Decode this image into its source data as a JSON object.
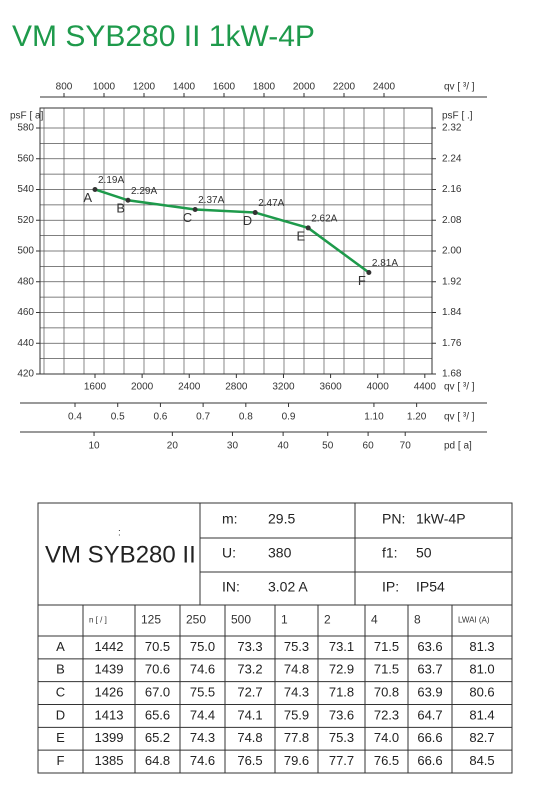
{
  "title": "VM SYB280 II 1kW-4P",
  "chart_data": {
    "type": "line",
    "x": [
      1600,
      1880,
      2450,
      2960,
      3410,
      3925
    ],
    "series": [
      {
        "color": "#1e9a4b",
        "values": [
          540,
          533,
          527,
          525,
          515,
          486
        ],
        "point_names": [
          "A",
          "B",
          "C",
          "D",
          "E",
          "F"
        ],
        "point_labels": [
          "2.19A",
          "2.29A",
          "2.37A",
          "2.47A",
          "2.62A",
          "2.81A"
        ]
      }
    ],
    "x_label": "qv [   ³/   ]",
    "xlim": [
      1133,
      4461
    ],
    "xticks": [
      1600,
      2000,
      2400,
      2800,
      3200,
      3600,
      4000,
      4400
    ],
    "y_label": "psF [  a]",
    "ylim": [
      420,
      593
    ],
    "yticks": [
      420,
      440,
      460,
      480,
      500,
      520,
      540,
      560,
      580
    ],
    "y2_label": "psF [       .]",
    "y2lim": [
      1.68,
      2.372
    ],
    "y2ticks": [
      1.68,
      1.76,
      1.84,
      1.92,
      {
        "value": 2.0,
        "label": "2.00"
      },
      2.08,
      2.16,
      2.24,
      2.32
    ],
    "top_axis": {
      "label": "qv [   ³/   ]",
      "lim": [
        680,
        2640
      ],
      "ticks": [
        800,
        1000,
        1200,
        1400,
        1600,
        1800,
        2000,
        2200,
        2400
      ]
    },
    "bottom_axes": [
      {
        "label": "qv [   ³/  ]",
        "lim": [
          0.318,
          1.236
        ],
        "ticks": [
          0.4,
          0.5,
          0.6,
          0.7,
          0.8,
          0.9,
          {
            "value": 1.1,
            "label": "1.10"
          },
          {
            "value": 1.2,
            "label": "1.20"
          }
        ]
      },
      {
        "label": "pd [   a]",
        "lim": [
          5.1,
          77.7
        ],
        "scale": "sqrt",
        "ticks": [
          10,
          20,
          30,
          40,
          50,
          60,
          70
        ]
      }
    ],
    "grid": true
  },
  "table": {
    "model": "VM SYB280 II",
    "mark": ":",
    "specs": [
      [
        "m:",
        "29.5"
      ],
      [
        "U:",
        "380"
      ],
      [
        "IN:",
        "3.02  A"
      ]
    ],
    "specs2": [
      [
        "PN:",
        "1kW-4P"
      ],
      [
        "f1:",
        "50"
      ],
      [
        "IP:",
        "IP54"
      ]
    ],
    "header": [
      "n [  /  ]",
      "125",
      "250",
      "500",
      "1",
      "2",
      "4",
      "8",
      "LWAI     (A)"
    ],
    "rows": [
      [
        "A",
        "1442",
        "70.5",
        "75.0",
        "73.3",
        "75.3",
        "73.1",
        "71.5",
        "63.6",
        "81.3"
      ],
      [
        "B",
        "1439",
        "70.6",
        "74.6",
        "73.2",
        "74.8",
        "72.9",
        "71.5",
        "63.7",
        "81.0"
      ],
      [
        "C",
        "1426",
        "67.0",
        "75.5",
        "72.7",
        "74.3",
        "71.8",
        "70.8",
        "63.9",
        "80.6"
      ],
      [
        "D",
        "1413",
        "65.6",
        "74.4",
        "74.1",
        "75.9",
        "73.6",
        "72.3",
        "64.7",
        "81.4"
      ],
      [
        "E",
        "1399",
        "65.2",
        "74.3",
        "74.8",
        "77.8",
        "75.3",
        "74.0",
        "66.6",
        "82.7"
      ],
      [
        "F",
        "1385",
        "64.8",
        "74.6",
        "76.5",
        "79.6",
        "77.7",
        "76.5",
        "66.6",
        "84.5"
      ]
    ]
  }
}
